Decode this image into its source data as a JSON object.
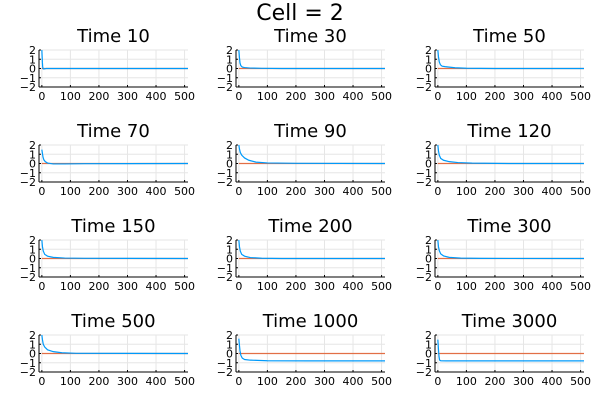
{
  "chart_data": {
    "type": "line",
    "suptitle": "Cell = 2",
    "xticks": [
      0,
      100,
      200,
      300,
      400,
      500
    ],
    "yticks": [
      -2,
      -1,
      0,
      1,
      2
    ],
    "ylim": [
      -2,
      2
    ],
    "xlim": [
      -10,
      512
    ],
    "grid": true,
    "legend": "none",
    "colors": {
      "series1": "#009AFA",
      "series2": "#E26F46"
    },
    "panels": [
      {
        "title": "Time 10",
        "blue": [
          [
            0,
            2
          ],
          [
            1,
            1.3
          ],
          [
            2,
            0.6
          ],
          [
            3,
            0.15
          ],
          [
            5,
            -0.05
          ],
          [
            8,
            -0.05
          ],
          [
            15,
            0
          ],
          [
            512,
            0
          ]
        ],
        "orange": [
          [
            0,
            0
          ],
          [
            512,
            0
          ]
        ]
      },
      {
        "title": "Time 30",
        "blue": [
          [
            0,
            2
          ],
          [
            2,
            1.2
          ],
          [
            4,
            0.6
          ],
          [
            7,
            0.3
          ],
          [
            12,
            0.15
          ],
          [
            20,
            0.1
          ],
          [
            40,
            0.05
          ],
          [
            80,
            0.02
          ],
          [
            150,
            0
          ],
          [
            512,
            0
          ]
        ],
        "orange": [
          [
            0,
            0
          ],
          [
            512,
            0
          ]
        ]
      },
      {
        "title": "Time 50",
        "blue": [
          [
            0,
            2
          ],
          [
            2,
            1.3
          ],
          [
            5,
            0.7
          ],
          [
            9,
            0.4
          ],
          [
            15,
            0.25
          ],
          [
            25,
            0.2
          ],
          [
            40,
            0.15
          ],
          [
            60,
            0.08
          ],
          [
            100,
            0.03
          ],
          [
            200,
            0
          ],
          [
            512,
            0
          ]
        ],
        "orange": [
          [
            0,
            0
          ],
          [
            512,
            0
          ]
        ]
      },
      {
        "title": "Time 70",
        "blue": [
          [
            0,
            1.5
          ],
          [
            2,
            1.1
          ],
          [
            4,
            0.7
          ],
          [
            7,
            0.4
          ],
          [
            12,
            0.2
          ],
          [
            20,
            0.05
          ],
          [
            40,
            -0.05
          ],
          [
            80,
            -0.05
          ],
          [
            150,
            -0.02
          ],
          [
            512,
            0
          ]
        ],
        "orange": [
          [
            0,
            0
          ],
          [
            512,
            0
          ]
        ]
      },
      {
        "title": "Time 90",
        "blue": [
          [
            0,
            2
          ],
          [
            2,
            1.6
          ],
          [
            5,
            1.2
          ],
          [
            10,
            0.9
          ],
          [
            20,
            0.6
          ],
          [
            35,
            0.35
          ],
          [
            60,
            0.15
          ],
          [
            100,
            0.06
          ],
          [
            200,
            0.02
          ],
          [
            512,
            0
          ]
        ],
        "orange": [
          [
            0,
            0
          ],
          [
            512,
            0
          ]
        ]
      },
      {
        "title": "Time 120",
        "blue": [
          [
            0,
            2
          ],
          [
            2,
            1.4
          ],
          [
            5,
            0.9
          ],
          [
            10,
            0.55
          ],
          [
            20,
            0.35
          ],
          [
            40,
            0.2
          ],
          [
            70,
            0.1
          ],
          [
            120,
            0.04
          ],
          [
            250,
            0
          ],
          [
            512,
            0
          ]
        ],
        "orange": [
          [
            0,
            0
          ],
          [
            512,
            0
          ]
        ]
      },
      {
        "title": "Time 150",
        "blue": [
          [
            0,
            2
          ],
          [
            2,
            1.3
          ],
          [
            5,
            0.8
          ],
          [
            10,
            0.45
          ],
          [
            20,
            0.25
          ],
          [
            40,
            0.12
          ],
          [
            80,
            0.05
          ],
          [
            150,
            0.02
          ],
          [
            512,
            0
          ]
        ],
        "orange": [
          [
            0,
            0
          ],
          [
            512,
            0
          ]
        ]
      },
      {
        "title": "Time 200",
        "blue": [
          [
            0,
            2
          ],
          [
            2,
            1.3
          ],
          [
            5,
            0.8
          ],
          [
            10,
            0.45
          ],
          [
            20,
            0.25
          ],
          [
            40,
            0.1
          ],
          [
            80,
            0.03
          ],
          [
            150,
            0
          ],
          [
            512,
            0
          ]
        ],
        "orange": [
          [
            0,
            0
          ],
          [
            512,
            0
          ]
        ]
      },
      {
        "title": "Time 300",
        "blue": [
          [
            0,
            2
          ],
          [
            2,
            1.3
          ],
          [
            5,
            0.85
          ],
          [
            10,
            0.5
          ],
          [
            20,
            0.28
          ],
          [
            40,
            0.12
          ],
          [
            80,
            0.04
          ],
          [
            150,
            0.01
          ],
          [
            512,
            0
          ]
        ],
        "orange": [
          [
            0,
            0
          ],
          [
            512,
            0
          ]
        ]
      },
      {
        "title": "Time 500",
        "blue": [
          [
            0,
            2
          ],
          [
            2,
            1.5
          ],
          [
            5,
            1.0
          ],
          [
            10,
            0.7
          ],
          [
            20,
            0.4
          ],
          [
            40,
            0.2
          ],
          [
            70,
            0.08
          ],
          [
            120,
            0.02
          ],
          [
            512,
            0
          ]
        ],
        "orange": [
          [
            0,
            0
          ],
          [
            512,
            0
          ]
        ]
      },
      {
        "title": "Time 1000",
        "blue": [
          [
            0,
            1.6
          ],
          [
            2,
            0.9
          ],
          [
            4,
            0.3
          ],
          [
            7,
            -0.2
          ],
          [
            12,
            -0.5
          ],
          [
            20,
            -0.65
          ],
          [
            40,
            -0.72
          ],
          [
            100,
            -0.78
          ],
          [
            250,
            -0.8
          ],
          [
            512,
            -0.8
          ]
        ],
        "orange": [
          [
            0,
            0
          ],
          [
            512,
            0
          ]
        ]
      },
      {
        "title": "Time 3000",
        "blue": [
          [
            0,
            1.5
          ],
          [
            2,
            0.5
          ],
          [
            4,
            -0.3
          ],
          [
            6,
            -0.7
          ],
          [
            10,
            -0.78
          ],
          [
            30,
            -0.8
          ],
          [
            512,
            -0.8
          ]
        ],
        "orange": [
          [
            0,
            0
          ],
          [
            512,
            0
          ]
        ]
      }
    ]
  }
}
